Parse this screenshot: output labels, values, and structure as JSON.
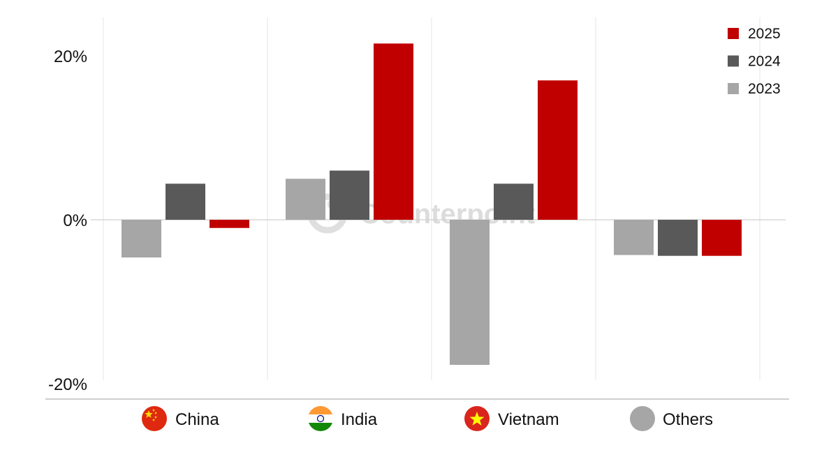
{
  "chart_data": {
    "type": "bar",
    "categories": [
      "China",
      "India",
      "Vietnam",
      "Others"
    ],
    "series": [
      {
        "name": "2023",
        "color": "#a6a6a6",
        "values": [
          -4.6,
          5.0,
          -17.7,
          -4.3
        ]
      },
      {
        "name": "2024",
        "color": "#595959",
        "values": [
          4.4,
          6.0,
          4.4,
          -4.4
        ]
      },
      {
        "name": "2025",
        "color": "#c00000",
        "values": [
          -1.0,
          21.5,
          17.0,
          -4.4
        ]
      }
    ],
    "legend_order": [
      "2025",
      "2024",
      "2023"
    ],
    "y_ticks": [
      20,
      0,
      -20
    ],
    "y_tick_labels": [
      "20%",
      "0%",
      "-20%"
    ],
    "ylim": [
      -20,
      25
    ],
    "legend_position": "top-right",
    "grid": "vertical category separators",
    "title": "",
    "xlabel": "",
    "ylabel": "",
    "category_icons": [
      "china-flag-icon",
      "india-flag-icon",
      "vietnam-flag-icon",
      "others-circle-icon"
    ],
    "watermark": "Counterpoint"
  }
}
